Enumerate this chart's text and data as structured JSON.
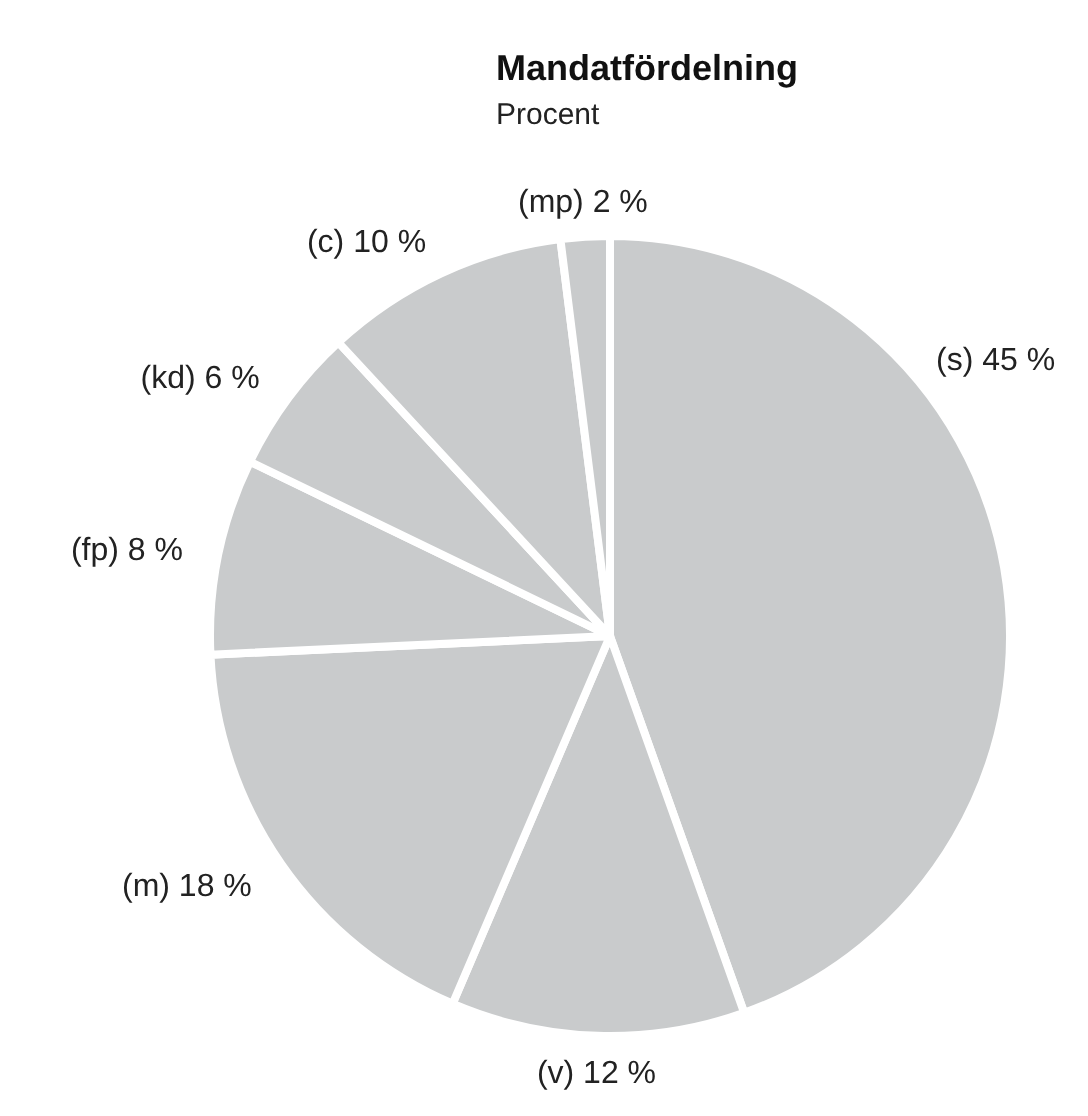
{
  "chart_data": {
    "type": "pie",
    "title": "Mandatfördelning",
    "subtitle": "Procent",
    "categories": [
      "(s)",
      "(v)",
      "(m)",
      "(fp)",
      "(kd)",
      "(c)",
      "(mp)"
    ],
    "values": [
      45,
      12,
      18,
      8,
      6,
      10,
      2
    ],
    "value_labels": [
      "45 %",
      "12 %",
      "18 %",
      "8 %",
      "6 %",
      "10 %",
      "2 %"
    ],
    "colors": [
      "#c9cbcc",
      "#c9cbcc",
      "#c9cbcc",
      "#c9cbcc",
      "#c9cbcc",
      "#c9cbcc",
      "#c9cbcc"
    ],
    "legend": false
  }
}
